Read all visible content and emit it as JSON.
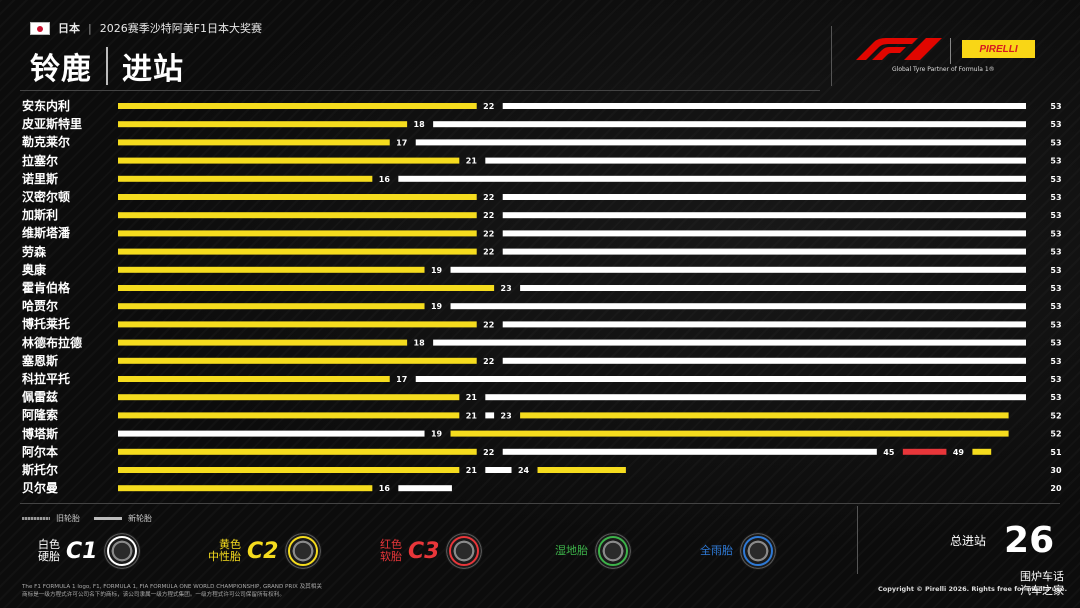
{
  "header": {
    "country": "日本",
    "event": "2026赛季沙特阿美F1日本大奖赛",
    "circuit": "铃鹿",
    "topic": "进站",
    "partner_line": "Global Tyre Partner of Formula 1®",
    "brand_f1": "F1",
    "brand_pirelli": "PIRELLI"
  },
  "legend": {
    "used": "旧轮胎",
    "new": "新轮胎"
  },
  "compounds": [
    {
      "label_line1": "白色",
      "label_line2": "硬胎",
      "code": "C1",
      "color": "#ffffff"
    },
    {
      "label_line1": "黄色",
      "label_line2": "中性胎",
      "code": "C2",
      "color": "#f5dc1e"
    },
    {
      "label_line1": "红色",
      "label_line2": "软胎",
      "code": "C3",
      "color": "#e8363a"
    },
    {
      "label_line1": "",
      "label_line2": "湿地胎",
      "code": "",
      "color": "#3db34a"
    },
    {
      "label_line1": "",
      "label_line2": "全雨胎",
      "code": "",
      "color": "#2f7ad6"
    }
  ],
  "total": {
    "label": "总进站",
    "value": "26"
  },
  "footer": {
    "legal_line1": "The F1 FORMULA 1 logo, F1, FORMULA 1, FIA FORMULA ONE WORLD CHAMPIONSHIP, GRAND PRIX 及其相关",
    "legal_line2": "商标是一级方程式许可公司名下的商标，该公司隶属一级方程式集团。一级方程式许可公司保留所有权利。",
    "copyright": "Copyright © Pirelli 2026. Rights free for media use."
  },
  "watermark": {
    "line1": "围炉车话",
    "line2": "汽车之家"
  },
  "chart_data": {
    "type": "bar",
    "orientation": "horizontal-stints",
    "x_unit": "lap",
    "xlim": [
      0,
      53
    ],
    "colors": {
      "hard": "#ffffff",
      "medium": "#f5dc1e",
      "soft": "#e8363a"
    },
    "drivers": [
      {
        "name": "安东内利",
        "stints": [
          {
            "compound": "medium",
            "end": 22
          },
          {
            "compound": "hard",
            "end": 53
          }
        ]
      },
      {
        "name": "皮亚斯特里",
        "stints": [
          {
            "compound": "medium",
            "end": 18
          },
          {
            "compound": "hard",
            "end": 53
          }
        ]
      },
      {
        "name": "勒克莱尔",
        "stints": [
          {
            "compound": "medium",
            "end": 17
          },
          {
            "compound": "hard",
            "end": 53
          }
        ]
      },
      {
        "name": "拉塞尔",
        "stints": [
          {
            "compound": "medium",
            "end": 21
          },
          {
            "compound": "hard",
            "end": 53
          }
        ]
      },
      {
        "name": "诺里斯",
        "stints": [
          {
            "compound": "medium",
            "end": 16
          },
          {
            "compound": "hard",
            "end": 53
          }
        ]
      },
      {
        "name": "汉密尔顿",
        "stints": [
          {
            "compound": "medium",
            "end": 22
          },
          {
            "compound": "hard",
            "end": 53
          }
        ]
      },
      {
        "name": "加斯利",
        "stints": [
          {
            "compound": "medium",
            "end": 22
          },
          {
            "compound": "hard",
            "end": 53
          }
        ]
      },
      {
        "name": "维斯塔潘",
        "stints": [
          {
            "compound": "medium",
            "end": 22
          },
          {
            "compound": "hard",
            "end": 53
          }
        ]
      },
      {
        "name": "劳森",
        "stints": [
          {
            "compound": "medium",
            "end": 22
          },
          {
            "compound": "hard",
            "end": 53
          }
        ]
      },
      {
        "name": "奥康",
        "stints": [
          {
            "compound": "medium",
            "end": 19
          },
          {
            "compound": "hard",
            "end": 53
          }
        ]
      },
      {
        "name": "霍肯伯格",
        "stints": [
          {
            "compound": "medium",
            "end": 23
          },
          {
            "compound": "hard",
            "end": 53
          }
        ]
      },
      {
        "name": "哈贾尔",
        "stints": [
          {
            "compound": "medium",
            "end": 19
          },
          {
            "compound": "hard",
            "end": 53
          }
        ]
      },
      {
        "name": "博托莱托",
        "stints": [
          {
            "compound": "medium",
            "end": 22
          },
          {
            "compound": "hard",
            "end": 53
          }
        ]
      },
      {
        "name": "林德布拉德",
        "stints": [
          {
            "compound": "medium",
            "end": 18
          },
          {
            "compound": "hard",
            "end": 53
          }
        ]
      },
      {
        "name": "塞恩斯",
        "stints": [
          {
            "compound": "medium",
            "end": 22
          },
          {
            "compound": "hard",
            "end": 53
          }
        ]
      },
      {
        "name": "科拉平托",
        "stints": [
          {
            "compound": "medium",
            "end": 17
          },
          {
            "compound": "hard",
            "end": 53
          }
        ]
      },
      {
        "name": "佩雷兹",
        "stints": [
          {
            "compound": "medium",
            "end": 21
          },
          {
            "compound": "hard",
            "end": 53
          }
        ]
      },
      {
        "name": "阿隆索",
        "stints": [
          {
            "compound": "medium",
            "end": 21
          },
          {
            "compound": "hard",
            "end": 23
          },
          {
            "compound": "medium",
            "end": 52
          }
        ]
      },
      {
        "name": "博塔斯",
        "stints": [
          {
            "compound": "hard",
            "end": 19
          },
          {
            "compound": "medium",
            "end": 52
          }
        ]
      },
      {
        "name": "阿尔本",
        "stints": [
          {
            "compound": "medium",
            "end": 22
          },
          {
            "compound": "hard",
            "end": 45
          },
          {
            "compound": "soft",
            "end": 49
          },
          {
            "compound": "medium",
            "end": 51
          }
        ]
      },
      {
        "name": "斯托尔",
        "stints": [
          {
            "compound": "medium",
            "end": 21
          },
          {
            "compound": "hard",
            "end": 24
          },
          {
            "compound": "medium",
            "end": 30
          }
        ]
      },
      {
        "name": "贝尔曼",
        "stints": [
          {
            "compound": "medium",
            "end": 16
          },
          {
            "compound": "hard",
            "end": 20
          }
        ]
      }
    ]
  }
}
